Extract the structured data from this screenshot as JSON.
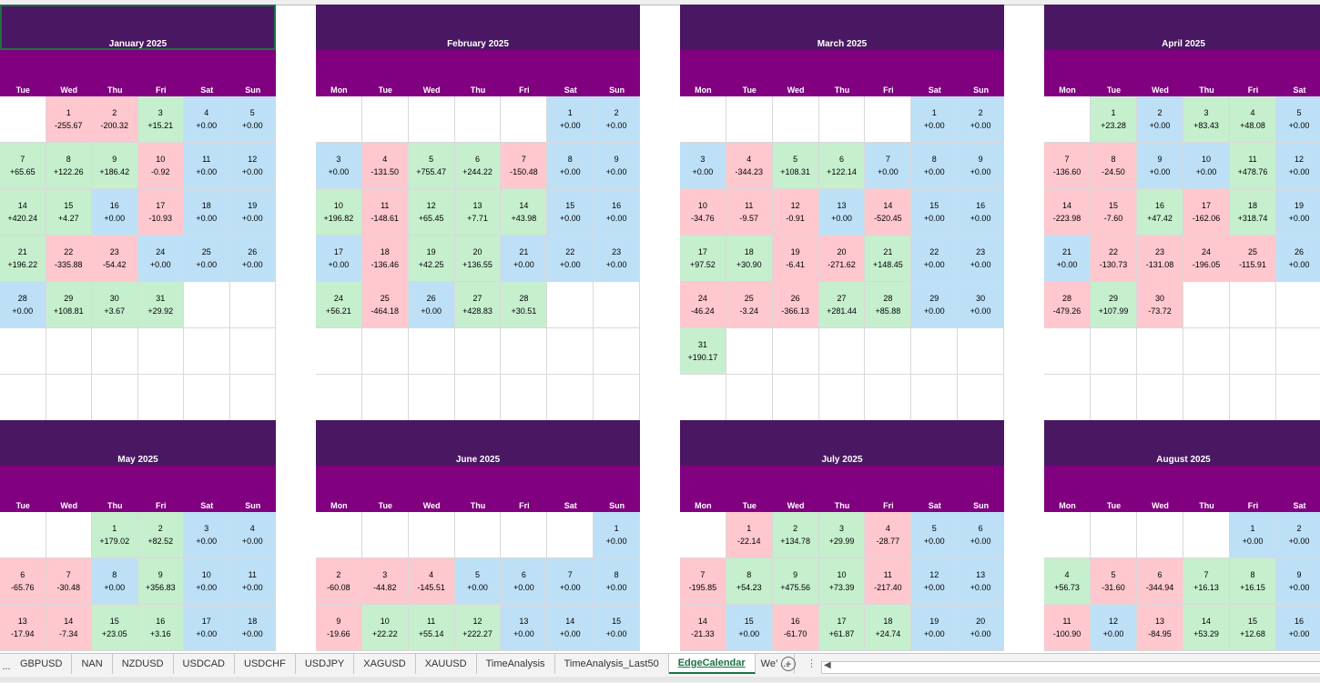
{
  "months": [
    {
      "title": "January 2025",
      "selected": true,
      "days": [
        "Tue",
        "Wed",
        "Thu",
        "Fri",
        "Sat",
        "Sun"
      ],
      "weeks": [
        [
          null,
          {
            "d": "1",
            "v": "-255.67"
          },
          {
            "d": "2",
            "v": "-200.32"
          },
          {
            "d": "3",
            "v": "+15.21"
          },
          {
            "d": "4",
            "v": "+0.00"
          },
          {
            "d": "5",
            "v": "+0.00"
          }
        ],
        [
          {
            "d": "7",
            "v": "+65.65"
          },
          {
            "d": "8",
            "v": "+122.26"
          },
          {
            "d": "9",
            "v": "+186.42"
          },
          {
            "d": "10",
            "v": "-0.92"
          },
          {
            "d": "11",
            "v": "+0.00"
          },
          {
            "d": "12",
            "v": "+0.00"
          }
        ],
        [
          {
            "d": "14",
            "v": "+420.24"
          },
          {
            "d": "15",
            "v": "+4.27"
          },
          {
            "d": "16",
            "v": "+0.00"
          },
          {
            "d": "17",
            "v": "-10.93"
          },
          {
            "d": "18",
            "v": "+0.00"
          },
          {
            "d": "19",
            "v": "+0.00"
          }
        ],
        [
          {
            "d": "21",
            "v": "+196.22"
          },
          {
            "d": "22",
            "v": "-335.88"
          },
          {
            "d": "23",
            "v": "-54.42"
          },
          {
            "d": "24",
            "v": "+0.00"
          },
          {
            "d": "25",
            "v": "+0.00"
          },
          {
            "d": "26",
            "v": "+0.00"
          }
        ],
        [
          {
            "d": "28",
            "v": "+0.00"
          },
          {
            "d": "29",
            "v": "+108.81"
          },
          {
            "d": "30",
            "v": "+3.67"
          },
          {
            "d": "31",
            "v": "+29.92"
          },
          null,
          null
        ],
        [
          null,
          null,
          null,
          null,
          null,
          null
        ],
        [
          null,
          null,
          null,
          null,
          null,
          null
        ]
      ]
    },
    {
      "title": "February 2025",
      "days": [
        "Mon",
        "Tue",
        "Wed",
        "Thu",
        "Fri",
        "Sat",
        "Sun"
      ],
      "weeks": [
        [
          null,
          null,
          null,
          null,
          null,
          {
            "d": "1",
            "v": "+0.00"
          },
          {
            "d": "2",
            "v": "+0.00"
          }
        ],
        [
          {
            "d": "3",
            "v": "+0.00"
          },
          {
            "d": "4",
            "v": "-131.50"
          },
          {
            "d": "5",
            "v": "+755.47"
          },
          {
            "d": "6",
            "v": "+244.22"
          },
          {
            "d": "7",
            "v": "-150.48"
          },
          {
            "d": "8",
            "v": "+0.00"
          },
          {
            "d": "9",
            "v": "+0.00"
          }
        ],
        [
          {
            "d": "10",
            "v": "+196.82"
          },
          {
            "d": "11",
            "v": "-148.61"
          },
          {
            "d": "12",
            "v": "+65.45"
          },
          {
            "d": "13",
            "v": "+7.71"
          },
          {
            "d": "14",
            "v": "+43.98"
          },
          {
            "d": "15",
            "v": "+0.00"
          },
          {
            "d": "16",
            "v": "+0.00"
          }
        ],
        [
          {
            "d": "17",
            "v": "+0.00"
          },
          {
            "d": "18",
            "v": "-136.46"
          },
          {
            "d": "19",
            "v": "+42.25"
          },
          {
            "d": "20",
            "v": "+136.55"
          },
          {
            "d": "21",
            "v": "+0.00"
          },
          {
            "d": "22",
            "v": "+0.00"
          },
          {
            "d": "23",
            "v": "+0.00"
          }
        ],
        [
          {
            "d": "24",
            "v": "+56.21"
          },
          {
            "d": "25",
            "v": "-464.18"
          },
          {
            "d": "26",
            "v": "+0.00"
          },
          {
            "d": "27",
            "v": "+428.83"
          },
          {
            "d": "28",
            "v": "+30.51"
          },
          null,
          null
        ],
        [
          null,
          null,
          null,
          null,
          null,
          null,
          null
        ],
        [
          null,
          null,
          null,
          null,
          null,
          null,
          null
        ]
      ]
    },
    {
      "title": "March 2025",
      "days": [
        "Mon",
        "Tue",
        "Wed",
        "Thu",
        "Fri",
        "Sat",
        "Sun"
      ],
      "weeks": [
        [
          null,
          null,
          null,
          null,
          null,
          {
            "d": "1",
            "v": "+0.00"
          },
          {
            "d": "2",
            "v": "+0.00"
          }
        ],
        [
          {
            "d": "3",
            "v": "+0.00"
          },
          {
            "d": "4",
            "v": "-344.23"
          },
          {
            "d": "5",
            "v": "+108.31"
          },
          {
            "d": "6",
            "v": "+122.14"
          },
          {
            "d": "7",
            "v": "+0.00"
          },
          {
            "d": "8",
            "v": "+0.00"
          },
          {
            "d": "9",
            "v": "+0.00"
          }
        ],
        [
          {
            "d": "10",
            "v": "-34.76"
          },
          {
            "d": "11",
            "v": "-9.57"
          },
          {
            "d": "12",
            "v": "-0.91"
          },
          {
            "d": "13",
            "v": "+0.00"
          },
          {
            "d": "14",
            "v": "-520.45"
          },
          {
            "d": "15",
            "v": "+0.00"
          },
          {
            "d": "16",
            "v": "+0.00"
          }
        ],
        [
          {
            "d": "17",
            "v": "+97.52"
          },
          {
            "d": "18",
            "v": "+30.90"
          },
          {
            "d": "19",
            "v": "-6.41"
          },
          {
            "d": "20",
            "v": "-271.62"
          },
          {
            "d": "21",
            "v": "+148.45"
          },
          {
            "d": "22",
            "v": "+0.00"
          },
          {
            "d": "23",
            "v": "+0.00"
          }
        ],
        [
          {
            "d": "24",
            "v": "-46.24"
          },
          {
            "d": "25",
            "v": "-3.24"
          },
          {
            "d": "26",
            "v": "-366.13"
          },
          {
            "d": "27",
            "v": "+281.44"
          },
          {
            "d": "28",
            "v": "+85.88"
          },
          {
            "d": "29",
            "v": "+0.00"
          },
          {
            "d": "30",
            "v": "+0.00"
          }
        ],
        [
          {
            "d": "31",
            "v": "+190.17"
          },
          null,
          null,
          null,
          null,
          null,
          null
        ],
        [
          null,
          null,
          null,
          null,
          null,
          null,
          null
        ]
      ]
    },
    {
      "title": "April 2025",
      "days": [
        "Mon",
        "Tue",
        "Wed",
        "Thu",
        "Fri",
        "Sat"
      ],
      "weeks": [
        [
          null,
          {
            "d": "1",
            "v": "+23.28"
          },
          {
            "d": "2",
            "v": "+0.00"
          },
          {
            "d": "3",
            "v": "+83.43"
          },
          {
            "d": "4",
            "v": "+48.08"
          },
          {
            "d": "5",
            "v": "+0.00"
          }
        ],
        [
          {
            "d": "7",
            "v": "-136.60"
          },
          {
            "d": "8",
            "v": "-24.50"
          },
          {
            "d": "9",
            "v": "+0.00"
          },
          {
            "d": "10",
            "v": "+0.00"
          },
          {
            "d": "11",
            "v": "+478.76"
          },
          {
            "d": "12",
            "v": "+0.00"
          }
        ],
        [
          {
            "d": "14",
            "v": "-223.98"
          },
          {
            "d": "15",
            "v": "-7.60"
          },
          {
            "d": "16",
            "v": "+47.42"
          },
          {
            "d": "17",
            "v": "-162.06"
          },
          {
            "d": "18",
            "v": "+318.74"
          },
          {
            "d": "19",
            "v": "+0.00"
          }
        ],
        [
          {
            "d": "21",
            "v": "+0.00"
          },
          {
            "d": "22",
            "v": "-130.73"
          },
          {
            "d": "23",
            "v": "-131.08"
          },
          {
            "d": "24",
            "v": "-196.05"
          },
          {
            "d": "25",
            "v": "-115.91"
          },
          {
            "d": "26",
            "v": "+0.00"
          }
        ],
        [
          {
            "d": "28",
            "v": "-479.26"
          },
          {
            "d": "29",
            "v": "+107.99"
          },
          {
            "d": "30",
            "v": "-73.72"
          },
          null,
          null,
          null
        ],
        [
          null,
          null,
          null,
          null,
          null,
          null
        ],
        [
          null,
          null,
          null,
          null,
          null,
          null
        ]
      ]
    },
    {
      "title": "May 2025",
      "days": [
        "Tue",
        "Wed",
        "Thu",
        "Fri",
        "Sat",
        "Sun"
      ],
      "weeks": [
        [
          null,
          null,
          {
            "d": "1",
            "v": "+179.02"
          },
          {
            "d": "2",
            "v": "+82.52"
          },
          {
            "d": "3",
            "v": "+0.00"
          },
          {
            "d": "4",
            "v": "+0.00"
          }
        ],
        [
          {
            "d": "6",
            "v": "-65.76"
          },
          {
            "d": "7",
            "v": "-30.48"
          },
          {
            "d": "8",
            "v": "+0.00"
          },
          {
            "d": "9",
            "v": "+356.83"
          },
          {
            "d": "10",
            "v": "+0.00"
          },
          {
            "d": "11",
            "v": "+0.00"
          }
        ],
        [
          {
            "d": "13",
            "v": "-17.94"
          },
          {
            "d": "14",
            "v": "-7.34"
          },
          {
            "d": "15",
            "v": "+23.05"
          },
          {
            "d": "16",
            "v": "+3.16"
          },
          {
            "d": "17",
            "v": "+0.00"
          },
          {
            "d": "18",
            "v": "+0.00"
          }
        ]
      ]
    },
    {
      "title": "June 2025",
      "days": [
        "Mon",
        "Tue",
        "Wed",
        "Thu",
        "Fri",
        "Sat",
        "Sun"
      ],
      "weeks": [
        [
          null,
          null,
          null,
          null,
          null,
          null,
          {
            "d": "1",
            "v": "+0.00"
          }
        ],
        [
          {
            "d": "2",
            "v": "-60.08"
          },
          {
            "d": "3",
            "v": "-44.82"
          },
          {
            "d": "4",
            "v": "-145.51"
          },
          {
            "d": "5",
            "v": "+0.00"
          },
          {
            "d": "6",
            "v": "+0.00"
          },
          {
            "d": "7",
            "v": "+0.00"
          },
          {
            "d": "8",
            "v": "+0.00"
          }
        ],
        [
          {
            "d": "9",
            "v": "-19.66"
          },
          {
            "d": "10",
            "v": "+22.22"
          },
          {
            "d": "11",
            "v": "+55.14"
          },
          {
            "d": "12",
            "v": "+222.27"
          },
          {
            "d": "13",
            "v": "+0.00"
          },
          {
            "d": "14",
            "v": "+0.00"
          },
          {
            "d": "15",
            "v": "+0.00"
          }
        ]
      ]
    },
    {
      "title": "July 2025",
      "days": [
        "Mon",
        "Tue",
        "Wed",
        "Thu",
        "Fri",
        "Sat",
        "Sun"
      ],
      "weeks": [
        [
          null,
          {
            "d": "1",
            "v": "-22.14"
          },
          {
            "d": "2",
            "v": "+134.78"
          },
          {
            "d": "3",
            "v": "+29.99"
          },
          {
            "d": "4",
            "v": "-28.77"
          },
          {
            "d": "5",
            "v": "+0.00"
          },
          {
            "d": "6",
            "v": "+0.00"
          }
        ],
        [
          {
            "d": "7",
            "v": "-195.85"
          },
          {
            "d": "8",
            "v": "+54.23"
          },
          {
            "d": "9",
            "v": "+475.56"
          },
          {
            "d": "10",
            "v": "+73.39"
          },
          {
            "d": "11",
            "v": "-217.40"
          },
          {
            "d": "12",
            "v": "+0.00"
          },
          {
            "d": "13",
            "v": "+0.00"
          }
        ],
        [
          {
            "d": "14",
            "v": "-21.33"
          },
          {
            "d": "15",
            "v": "+0.00"
          },
          {
            "d": "16",
            "v": "-61.70"
          },
          {
            "d": "17",
            "v": "+61.87"
          },
          {
            "d": "18",
            "v": "+24.74"
          },
          {
            "d": "19",
            "v": "+0.00"
          },
          {
            "d": "20",
            "v": "+0.00"
          }
        ]
      ]
    },
    {
      "title": "August 2025",
      "days": [
        "Mon",
        "Tue",
        "Wed",
        "Thu",
        "Fri",
        "Sat"
      ],
      "weeks": [
        [
          null,
          null,
          null,
          null,
          {
            "d": "1",
            "v": "+0.00"
          },
          {
            "d": "2",
            "v": "+0.00"
          }
        ],
        [
          {
            "d": "4",
            "v": "+56.73"
          },
          {
            "d": "5",
            "v": "-31.60"
          },
          {
            "d": "6",
            "v": "-344.94"
          },
          {
            "d": "7",
            "v": "+16.13"
          },
          {
            "d": "8",
            "v": "+16.15"
          },
          {
            "d": "9",
            "v": "+0.00"
          }
        ],
        [
          {
            "d": "11",
            "v": "-100.90"
          },
          {
            "d": "12",
            "v": "+0.00"
          },
          {
            "d": "13",
            "v": "-84.95"
          },
          {
            "d": "14",
            "v": "+53.29"
          },
          {
            "d": "15",
            "v": "+12.68"
          },
          {
            "d": "16",
            "v": "+0.00"
          }
        ]
      ]
    }
  ],
  "sheet_tabs": {
    "nav_prev": "...",
    "items": [
      "GBPUSD",
      "NAN",
      "NZDUSD",
      "USDCAD",
      "USDCHF",
      "USDJPY",
      "XAGUSD",
      "XAUUSD",
      "TimeAnalysis",
      "TimeAnalysis_Last50",
      "EdgeCalendar",
      "We’ ..."
    ],
    "active": "EdgeCalendar",
    "add_label": "+"
  },
  "colors": {
    "title_bg": "#4a1862",
    "dow_bg": "#800080",
    "positive": "#c6efce",
    "negative": "#ffc7ce",
    "zero": "#bde0f7"
  }
}
